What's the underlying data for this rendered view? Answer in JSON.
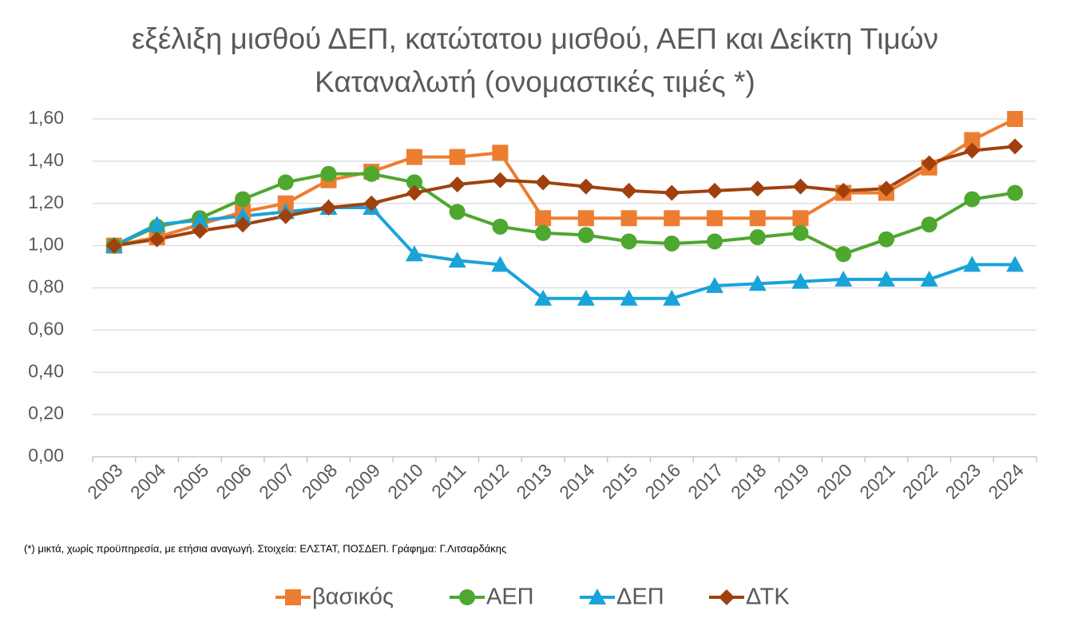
{
  "chart_data": {
    "type": "line",
    "title": "εξέλιξη μισθού ΔΕΠ, κατώτατου μισθού, ΑΕΠ και Δείκτη Τιμών Καταναλωτή (ονομαστικές τιμές *)",
    "footnote": "(*) μικτά, χωρίς προϋπηρεσία, με ετήσια αναγωγή. Στοιχεία: ΕΛΣΤΑΤ, ΠΟΣΔΕΠ. Γράφημα: Γ.Λιτσαρδάκης",
    "categories": [
      "2003",
      "2004",
      "2005",
      "2006",
      "2007",
      "2008",
      "2009",
      "2010",
      "2011",
      "2012",
      "2013",
      "2014",
      "2015",
      "2016",
      "2017",
      "2018",
      "2019",
      "2020",
      "2021",
      "2022",
      "2023",
      "2024"
    ],
    "series": [
      {
        "name": "βασικός",
        "color": "#ed7d31",
        "marker": "square",
        "values": [
          1.0,
          1.04,
          1.1,
          1.16,
          1.2,
          1.31,
          1.35,
          1.42,
          1.42,
          1.44,
          1.13,
          1.13,
          1.13,
          1.13,
          1.13,
          1.13,
          1.13,
          1.25,
          1.25,
          1.37,
          1.5,
          1.6
        ]
      },
      {
        "name": "ΑΕΠ",
        "color": "#4ea72e",
        "marker": "circle",
        "values": [
          1.0,
          1.09,
          1.13,
          1.22,
          1.3,
          1.34,
          1.34,
          1.3,
          1.16,
          1.09,
          1.06,
          1.05,
          1.02,
          1.01,
          1.02,
          1.04,
          1.06,
          0.96,
          1.03,
          1.1,
          1.22,
          1.25
        ]
      },
      {
        "name": "ΔΕΠ",
        "color": "#1aa3d9",
        "marker": "triangle",
        "values": [
          1.0,
          1.1,
          1.12,
          1.14,
          1.16,
          1.18,
          1.18,
          0.96,
          0.93,
          0.91,
          0.75,
          0.75,
          0.75,
          0.75,
          0.81,
          0.82,
          0.83,
          0.84,
          0.84,
          0.84,
          0.91,
          0.91
        ]
      },
      {
        "name": "ΔΤΚ",
        "color": "#a0410d",
        "marker": "diamond",
        "values": [
          1.0,
          1.03,
          1.07,
          1.1,
          1.14,
          1.18,
          1.2,
          1.25,
          1.29,
          1.31,
          1.3,
          1.28,
          1.26,
          1.25,
          1.26,
          1.27,
          1.28,
          1.26,
          1.27,
          1.39,
          1.45,
          1.47
        ]
      }
    ],
    "ylim": [
      0,
      1.6
    ],
    "yticks": [
      {
        "value": 0,
        "label": "0,00"
      },
      {
        "value": 0.2,
        "label": "0,20"
      },
      {
        "value": 0.4,
        "label": "0,40"
      },
      {
        "value": 0.6,
        "label": "0,60"
      },
      {
        "value": 0.8,
        "label": "0,80"
      },
      {
        "value": 1.0,
        "label": "1,00"
      },
      {
        "value": 1.2,
        "label": "1,20"
      },
      {
        "value": 1.4,
        "label": "1,40"
      },
      {
        "value": 1.6,
        "label": "1,60"
      }
    ],
    "grid": true,
    "legend": "bottom"
  }
}
